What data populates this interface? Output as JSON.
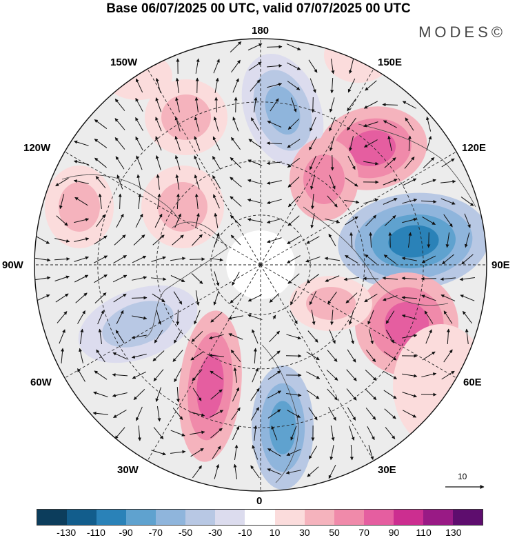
{
  "header": {
    "title": "Base 06/07/2025 00 UTC, valid 07/07/2025 00 UTC",
    "brand": "MODES©"
  },
  "map": {
    "projection": "north-polar-stereographic",
    "field": "wind anomaly vectors with shaded anomaly",
    "longitude_labels": {
      "lon_180": "180",
      "lon_150E": "150E",
      "lon_120E": "120E",
      "lon_90E": "90E",
      "lon_60E": "60E",
      "lon_30E": "30E",
      "lon_0": "0",
      "lon_30W": "30W",
      "lon_60W": "60W",
      "lon_90W": "90W",
      "lon_120W": "120W",
      "lon_150W": "150W"
    },
    "reference_vector_label": "10"
  },
  "colorbar": {
    "colors": [
      "#0c3d5c",
      "#125d8c",
      "#2a82b8",
      "#5fa2cf",
      "#8fb5dc",
      "#b8c8e4",
      "#dcdcee",
      "#ffffff",
      "#fbdcdc",
      "#f5b3bd",
      "#f08aaa",
      "#e55ea0",
      "#cc2e90",
      "#991a85",
      "#5e0d6e"
    ],
    "ticks": [
      "-130",
      "-110",
      "-90",
      "-70",
      "-50",
      "-30",
      "-10",
      "10",
      "30",
      "50",
      "70",
      "90",
      "110",
      "130"
    ]
  }
}
